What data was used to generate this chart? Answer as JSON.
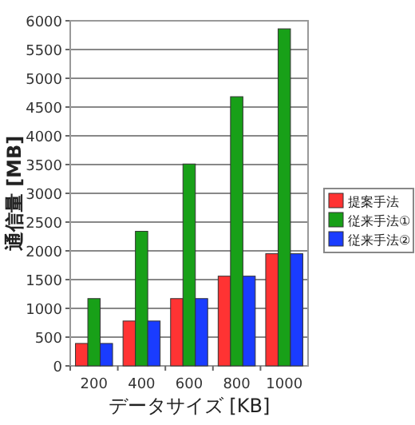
{
  "chart_data": {
    "type": "bar",
    "xlabel": "データサイズ [KB]",
    "ylabel": "通信量 [MB]",
    "categories": [
      "200",
      "400",
      "600",
      "800",
      "1000"
    ],
    "series": [
      {
        "name": "提案手法",
        "color": "#ff3333",
        "values": [
          390,
          780,
          1170,
          1560,
          1950
        ]
      },
      {
        "name": "従来手法①",
        "color": "#18a018",
        "values": [
          1170,
          2340,
          3510,
          4680,
          5860
        ]
      },
      {
        "name": "従来手法②",
        "color": "#1a3cff",
        "values": [
          390,
          780,
          1170,
          1560,
          1950
        ]
      }
    ],
    "ylim": [
      0,
      6000
    ],
    "yticks": [
      0,
      500,
      1000,
      1500,
      2000,
      2500,
      3000,
      3500,
      4000,
      4500,
      5000,
      5500,
      6000
    ],
    "grid": "y",
    "legend": "right"
  }
}
